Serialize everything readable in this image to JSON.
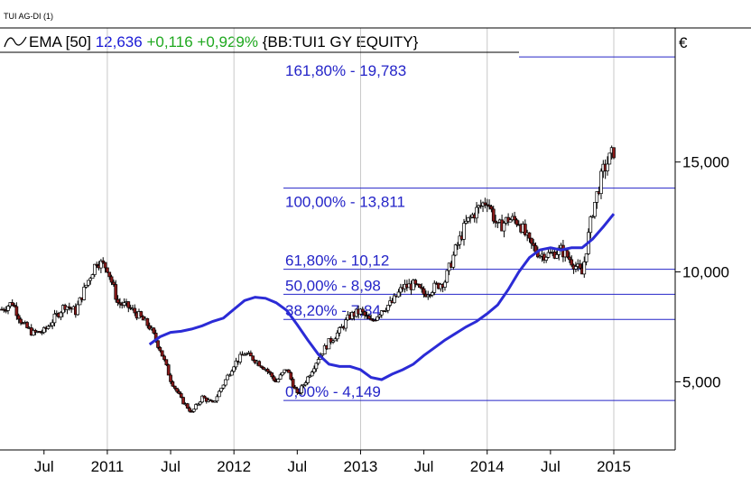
{
  "header": {
    "title": "TUI AG-DI (1)",
    "legend_indicator": "EMA [50]",
    "legend_value": "12,636",
    "legend_change": "+0,116",
    "legend_change_pct": "+0,929%",
    "legend_ticker": "{BB:TUI1 GY EQUITY}",
    "currency": "€"
  },
  "colors": {
    "ema_line": "#2b2bd6",
    "fib_lines": "#2424c8",
    "fib_text": "#2424c8",
    "candle_up": "#ffffff",
    "candle_down": "#8b1a1a",
    "candle_outline": "#000000",
    "grid": "#c8c8c8",
    "change_text": "#1fa81f"
  },
  "chart_data": {
    "type": "candlestick",
    "title": "TUI AG-DI (1)",
    "x": [
      "2010-03",
      "2010-04",
      "2010-05",
      "2010-06",
      "2010-07",
      "2010-08",
      "2010-09",
      "2010-10",
      "2010-11",
      "2010-12",
      "2011-01",
      "2011-02",
      "2011-03",
      "2011-04",
      "2011-05",
      "2011-06",
      "2011-07",
      "2011-08",
      "2011-09",
      "2011-10",
      "2011-11",
      "2011-12",
      "2012-01",
      "2012-02",
      "2012-03",
      "2012-04",
      "2012-05",
      "2012-06",
      "2012-07",
      "2012-08",
      "2012-09",
      "2012-10",
      "2012-11",
      "2012-12",
      "2013-01",
      "2013-02",
      "2013-03",
      "2013-04",
      "2013-05",
      "2013-06",
      "2013-07",
      "2013-08",
      "2013-09",
      "2013-10",
      "2013-11",
      "2013-12",
      "2014-01",
      "2014-02",
      "2014-03",
      "2014-04",
      "2014-05",
      "2014-06",
      "2014-07",
      "2014-08",
      "2014-09",
      "2014-10",
      "2014-11",
      "2014-12",
      "2015-01"
    ],
    "x_tick_labels": [
      "Jul",
      "2011",
      "Jul",
      "2012",
      "Jul",
      "2013",
      "Jul",
      "2014",
      "Jul",
      "2015"
    ],
    "close": [
      8.3,
      8.6,
      7.6,
      7.2,
      7.3,
      7.9,
      8.5,
      8.2,
      9.4,
      10.5,
      10.2,
      8.6,
      8.4,
      8.0,
      7.5,
      6.5,
      5.1,
      4.2,
      3.6,
      4.3,
      4.0,
      4.9,
      5.8,
      6.3,
      6.0,
      5.6,
      5.0,
      5.6,
      4.4,
      5.2,
      6.1,
      6.8,
      7.3,
      8.0,
      8.2,
      7.7,
      8.3,
      8.6,
      9.3,
      9.4,
      9.0,
      9.3,
      9.6,
      11.0,
      12.2,
      12.8,
      13.3,
      12.0,
      12.4,
      12.3,
      11.3,
      10.8,
      10.8,
      11.0,
      10.5,
      9.9,
      12.8,
      14.6,
      15.5
    ],
    "ema": [
      6.7,
      7.05,
      7.25,
      7.3,
      7.4,
      7.55,
      7.75,
      7.9,
      8.3,
      8.7,
      8.85,
      8.8,
      8.6,
      8.25,
      7.6,
      6.9,
      6.25,
      5.8,
      5.7,
      5.7,
      5.55,
      5.2,
      5.1,
      5.35,
      5.55,
      5.8,
      6.2,
      6.55,
      6.9,
      7.2,
      7.5,
      7.75,
      8.1,
      8.5,
      9.2,
      10.0,
      10.65,
      11.0,
      11.1,
      11.0,
      11.1,
      11.1,
      11.5,
      12.05,
      12.64
    ],
    "ema_value": 12.636,
    "fib_levels": [
      {
        "label": "161,80% - 19,783",
        "value": 19.783
      },
      {
        "label": "100,00% - 13,811",
        "value": 13.811
      },
      {
        "label": "61,80% - 10,12",
        "value": 10.12
      },
      {
        "label": "50,00% - 8,98",
        "value": 8.98
      },
      {
        "label": "38,20% - 7,84",
        "value": 7.84
      },
      {
        "label": "0,00% - 4,149",
        "value": 4.149
      }
    ],
    "y_ticks": [
      5,
      10,
      15
    ],
    "y_tick_labels": [
      "5,000",
      "10,000",
      "15,000"
    ],
    "ylim": [
      1.9,
      21.1
    ],
    "currency": "€",
    "grid": true
  }
}
